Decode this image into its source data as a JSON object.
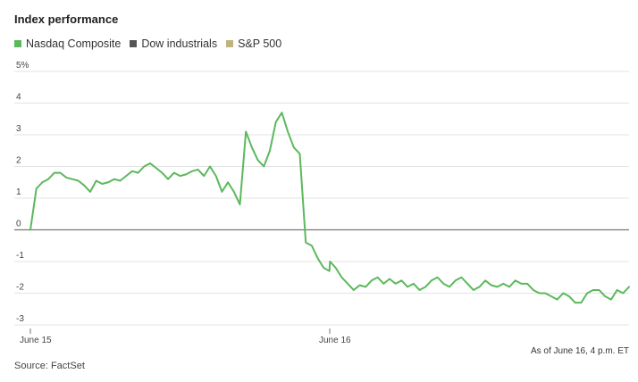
{
  "header": {
    "title": "Index performance"
  },
  "legend": [
    {
      "label": "Nasdaq Composite",
      "color": "#5cb85c"
    },
    {
      "label": "Dow industrials",
      "color": "#555555"
    },
    {
      "label": "S&P 500",
      "color": "#bfb47e"
    }
  ],
  "footer": {
    "note": "As of June 16, 4 p.m. ET",
    "source": "Source: FactSet"
  },
  "chart_data": {
    "type": "line",
    "title": "Index performance",
    "ylabel": "",
    "xlabel": "",
    "ylim": [
      -3,
      5
    ],
    "yticks": [
      {
        "value": 5,
        "label": "5%"
      },
      {
        "value": 4,
        "label": "4"
      },
      {
        "value": 3,
        "label": "3"
      },
      {
        "value": 2,
        "label": "2"
      },
      {
        "value": 1,
        "label": "1"
      },
      {
        "value": 0,
        "label": "0"
      },
      {
        "value": -1,
        "label": "-1"
      },
      {
        "value": -2,
        "label": "-2"
      },
      {
        "value": -3,
        "label": "-3"
      }
    ],
    "xlim": [
      0,
      2
    ],
    "xticks": [
      {
        "value": 0,
        "label": "June 15"
      },
      {
        "value": 1,
        "label": "June 16"
      }
    ],
    "grid": true,
    "legend_position": "top-left",
    "series": [
      {
        "name": "Nasdaq Composite",
        "color": "#5cb85c",
        "x": [
          0,
          0.02,
          0.04,
          0.06,
          0.08,
          0.1,
          0.12,
          0.14,
          0.16,
          0.18,
          0.2,
          0.22,
          0.24,
          0.26,
          0.28,
          0.3,
          0.32,
          0.34,
          0.36,
          0.38,
          0.4,
          0.42,
          0.44,
          0.46,
          0.48,
          0.5,
          0.52,
          0.54,
          0.56,
          0.58,
          0.6,
          0.62,
          0.64,
          0.66,
          0.68,
          0.7,
          0.72,
          0.74,
          0.76,
          0.78,
          0.8,
          0.82,
          0.84,
          0.86,
          0.88,
          0.9,
          0.92,
          0.94,
          0.96,
          0.98,
          0.999,
          1.001,
          1.02,
          1.04,
          1.06,
          1.08,
          1.1,
          1.12,
          1.14,
          1.16,
          1.18,
          1.2,
          1.22,
          1.24,
          1.26,
          1.28,
          1.3,
          1.32,
          1.34,
          1.36,
          1.38,
          1.4,
          1.42,
          1.44,
          1.46,
          1.48,
          1.5,
          1.52,
          1.54,
          1.56,
          1.58,
          1.6,
          1.62,
          1.64,
          1.66,
          1.68,
          1.7,
          1.72,
          1.74,
          1.76,
          1.78,
          1.8,
          1.82,
          1.84,
          1.86,
          1.88,
          1.9,
          1.92,
          1.94,
          1.96,
          1.98,
          2.0
        ],
        "values": [
          0,
          1.3,
          1.5,
          1.6,
          1.8,
          1.8,
          1.65,
          1.6,
          1.55,
          1.4,
          1.2,
          1.55,
          1.45,
          1.5,
          1.6,
          1.55,
          1.7,
          1.85,
          1.8,
          2.0,
          2.1,
          1.95,
          1.8,
          1.6,
          1.8,
          1.7,
          1.75,
          1.85,
          1.9,
          1.7,
          2.0,
          1.7,
          1.2,
          1.5,
          1.2,
          0.8,
          3.1,
          2.6,
          2.2,
          2.0,
          2.5,
          3.4,
          3.7,
          3.1,
          2.6,
          2.4,
          -0.4,
          -0.5,
          -0.9,
          -1.2,
          -1.3,
          -1.0,
          -1.2,
          -1.5,
          -1.7,
          -1.9,
          -1.75,
          -1.8,
          -1.6,
          -1.5,
          -1.7,
          -1.55,
          -1.7,
          -1.6,
          -1.8,
          -1.7,
          -1.9,
          -1.8,
          -1.6,
          -1.5,
          -1.7,
          -1.8,
          -1.6,
          -1.5,
          -1.7,
          -1.9,
          -1.8,
          -1.6,
          -1.75,
          -1.8,
          -1.7,
          -1.8,
          -1.6,
          -1.7,
          -1.7,
          -1.9,
          -2.0,
          -2.0,
          -2.1,
          -2.2,
          -2.0,
          -2.1,
          -2.3,
          -2.3,
          -2.0,
          -1.9,
          -1.9,
          -2.1,
          -2.2,
          -1.9,
          -2.0,
          -1.8
        ],
        "values_note": ""
      }
    ]
  }
}
